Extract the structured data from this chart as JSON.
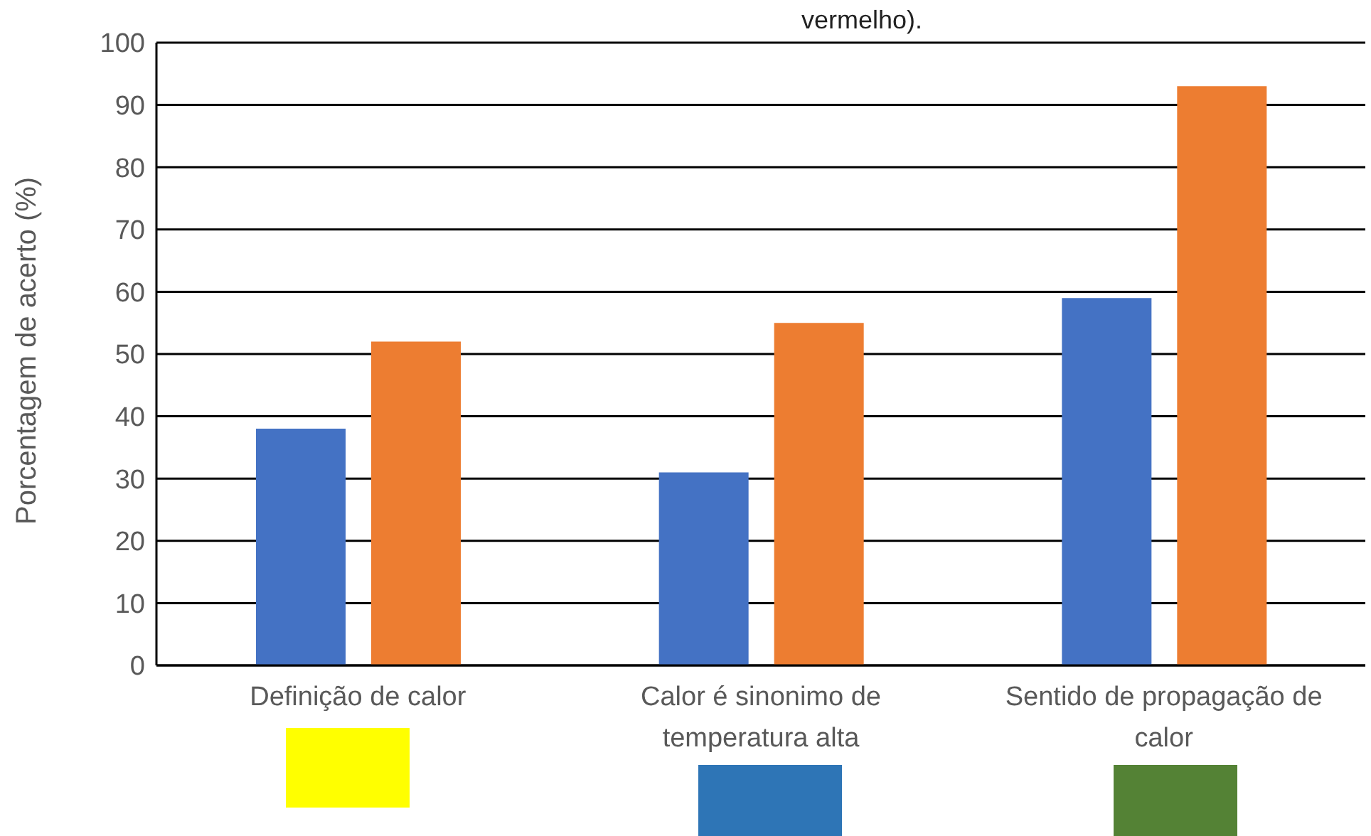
{
  "chart_data": {
    "type": "bar",
    "title": "vermelho).",
    "ylabel": "Porcentagem de acerto (%)",
    "categories": [
      "Definição de calor",
      "Calor é sinonimo de temperatura alta",
      "Sentido de propagação de calor"
    ],
    "series": [
      {
        "color": "#4472c4",
        "values": [
          38,
          31,
          59
        ]
      },
      {
        "color": "#ed7d31",
        "values": [
          52,
          55,
          93
        ]
      }
    ],
    "ylim": [
      0,
      100
    ],
    "yticks": [
      0,
      10,
      20,
      30,
      40,
      50,
      60,
      70,
      80,
      90,
      100
    ],
    "grid": "y",
    "legend": false
  }
}
